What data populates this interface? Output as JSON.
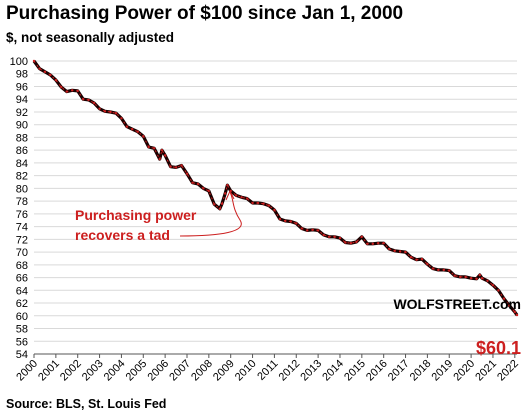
{
  "title": "Purchasing  Power of $100 since Jan 1, 2000",
  "subtitle": "$, not seasonally adjusted",
  "source": "Source: BLS, St. Louis Fed",
  "watermark": "WOLFSTREET.com",
  "colors": {
    "line": "#1a0000",
    "highlight": "#cc1f1f",
    "grid": "#d9d9d9"
  },
  "chart_data": {
    "type": "line",
    "title": "Purchasing  Power of $100 since Jan 1, 2000",
    "subtitle": "$, not seasonally adjusted",
    "ylabel": "",
    "xlabel": "",
    "ylim": [
      54,
      100
    ],
    "yticks": [
      "54",
      "56",
      "58",
      "60",
      "62",
      "64",
      "66",
      "68",
      "70",
      "72",
      "74",
      "76",
      "78",
      "80",
      "82",
      "84",
      "86",
      "88",
      "90",
      "92",
      "94",
      "96",
      "98",
      "100"
    ],
    "xticks": [
      "2000",
      "2001",
      "2002",
      "2003",
      "2004",
      "2005",
      "2006",
      "2007",
      "2008",
      "2009",
      "2010",
      "2011",
      "2012",
      "2013",
      "2014",
      "2015",
      "2016",
      "2017",
      "2018",
      "2019",
      "2020",
      "2021",
      "2022"
    ],
    "xlim": [
      2000,
      2022.1
    ],
    "grid": "horizontal",
    "series": [
      {
        "x": [
          2000.0,
          2000.25,
          2000.5,
          2000.75,
          2001.0,
          2001.25,
          2001.5,
          2001.75,
          2002.0,
          2002.25,
          2002.5,
          2002.75,
          2003.0,
          2003.25,
          2003.5,
          2003.75,
          2004.0,
          2004.25,
          2004.5,
          2004.75,
          2005.0,
          2005.25,
          2005.5,
          2005.75,
          2005.85,
          2006.0,
          2006.25,
          2006.5,
          2006.75,
          2007.0,
          2007.25,
          2007.5,
          2007.75,
          2008.0,
          2008.25,
          2008.5,
          2008.6,
          2008.75,
          2008.85,
          2009.0,
          2009.25,
          2009.5,
          2009.75,
          2010.0,
          2010.25,
          2010.5,
          2010.75,
          2011.0,
          2011.25,
          2011.5,
          2011.75,
          2012.0,
          2012.25,
          2012.5,
          2012.75,
          2013.0,
          2013.25,
          2013.5,
          2013.75,
          2014.0,
          2014.25,
          2014.5,
          2014.75,
          2015.0,
          2015.25,
          2015.5,
          2015.75,
          2016.0,
          2016.25,
          2016.5,
          2016.75,
          2017.0,
          2017.25,
          2017.5,
          2017.75,
          2018.0,
          2018.25,
          2018.5,
          2018.75,
          2019.0,
          2019.25,
          2019.5,
          2019.75,
          2020.0,
          2020.25,
          2020.4,
          2020.5,
          2020.75,
          2021.0,
          2021.25,
          2021.5,
          2021.75,
          2022.0,
          2022.1
        ],
        "values": [
          100.0,
          98.8,
          98.3,
          97.8,
          97.0,
          95.9,
          95.2,
          95.4,
          95.3,
          94.0,
          93.9,
          93.4,
          92.5,
          92.1,
          92.0,
          91.8,
          91.0,
          89.7,
          89.3,
          88.9,
          88.2,
          86.5,
          86.3,
          84.6,
          86.0,
          85.2,
          83.4,
          83.3,
          83.6,
          82.3,
          80.9,
          80.7,
          80.0,
          79.6,
          77.5,
          76.8,
          77.6,
          79.2,
          80.5,
          79.6,
          78.9,
          78.6,
          78.4,
          77.7,
          77.7,
          77.6,
          77.3,
          76.6,
          75.2,
          74.9,
          74.8,
          74.5,
          73.7,
          73.4,
          73.5,
          73.4,
          72.7,
          72.4,
          72.4,
          72.2,
          71.5,
          71.4,
          71.6,
          72.4,
          71.3,
          71.3,
          71.4,
          71.4,
          70.5,
          70.2,
          70.1,
          70.0,
          69.2,
          68.8,
          68.9,
          68.1,
          67.4,
          67.2,
          67.2,
          67.1,
          66.3,
          66.1,
          66.1,
          65.9,
          65.8,
          66.4,
          65.9,
          65.5,
          64.8,
          64.0,
          62.7,
          61.6,
          60.6,
          60.1
        ]
      }
    ],
    "annotations": [
      {
        "text": "Purchasing power",
        "text2": "recovers a tad",
        "target_x": 2008.85,
        "target_y": 78.0
      },
      {
        "text": "$60.1",
        "target_x": 2022.1,
        "target_y": 60.1
      }
    ]
  }
}
